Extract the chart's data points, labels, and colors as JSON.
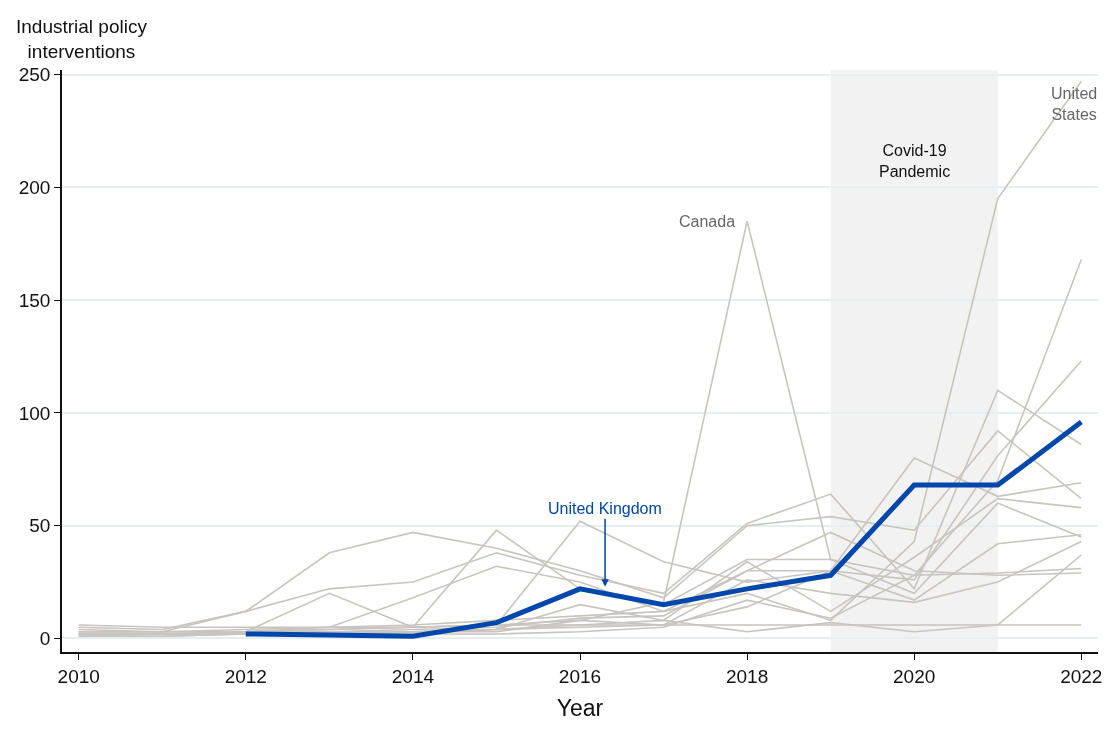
{
  "chart_data": {
    "type": "line",
    "xlabel": "Year",
    "ylabel": "Industrial policy\ninterventions",
    "x": [
      2010,
      2011,
      2012,
      2013,
      2014,
      2015,
      2016,
      2017,
      2018,
      2019,
      2020,
      2021,
      2022
    ],
    "series": [
      {
        "color": "#c8c4bf",
        "values": [
          3,
          3,
          4,
          5,
          6,
          8,
          10,
          12,
          20,
          8,
          43,
          195,
          247
        ]
      },
      {
        "color": "#c8c4bf",
        "values": [
          2,
          2,
          3,
          4,
          5,
          6,
          8,
          16,
          185,
          35,
          20,
          60,
          45
        ]
      },
      {
        "color": "#c8c4bf",
        "values": [
          5,
          4,
          12,
          38,
          47,
          40,
          30,
          18,
          50,
          54,
          48,
          92,
          62
        ]
      },
      {
        "color": "#c8c4bf",
        "values": [
          3,
          3,
          12,
          22,
          25,
          38,
          28,
          20,
          51,
          64,
          22,
          110,
          86
        ]
      },
      {
        "color": "#c8c4bf",
        "values": [
          2,
          2,
          3,
          20,
          5,
          48,
          22,
          15,
          35,
          35,
          28,
          70,
          168
        ]
      },
      {
        "color": "#c8c4bf",
        "values": [
          1,
          2,
          3,
          5,
          18,
          32,
          25,
          12,
          30,
          30,
          26,
          81,
          123
        ]
      },
      {
        "color": "#c8c4bf",
        "values": [
          4,
          3,
          3,
          4,
          5,
          6,
          52,
          34,
          25,
          30,
          80,
          63,
          69
        ]
      },
      {
        "color": "#c8c4bf",
        "values": [
          2,
          2,
          2,
          3,
          3,
          4,
          15,
          8,
          34,
          12,
          36,
          62,
          58
        ]
      },
      {
        "color": "#c8c4bf",
        "values": [
          1,
          1,
          2,
          2,
          3,
          4,
          5,
          6,
          14,
          30,
          17,
          42,
          46
        ]
      },
      {
        "color": "#c8c4bf",
        "values": [
          2,
          2,
          2,
          3,
          3,
          3,
          8,
          6,
          26,
          20,
          16,
          25,
          43
        ]
      },
      {
        "color": "#c8c4bf",
        "values": [
          3,
          3,
          3,
          3,
          3,
          4,
          6,
          8,
          3,
          7,
          3,
          6,
          37
        ]
      },
      {
        "color": "#c8c4bf",
        "values": [
          1,
          1,
          2,
          2,
          2,
          2,
          3,
          5,
          17,
          9,
          28,
          29,
          31
        ]
      },
      {
        "color": "#c8c4bf",
        "values": [
          2,
          2,
          2,
          3,
          4,
          5,
          9,
          10,
          30,
          47,
          30,
          28,
          29
        ]
      },
      {
        "color": "#c8c4bf",
        "values": [
          6,
          5,
          5,
          5,
          5,
          6,
          6,
          6,
          6,
          6,
          6,
          6,
          6
        ]
      },
      {
        "color": "#0047ab",
        "values": [
          null,
          null,
          2,
          1.5,
          1,
          7,
          22,
          15,
          22,
          28,
          68,
          68,
          96
        ]
      }
    ],
    "annotations": [
      {
        "text": "Canada",
        "x": 2018,
        "y": 185
      },
      {
        "text": "United\nStates",
        "x": 2022,
        "y": 247
      },
      {
        "text": "United Kingdom",
        "x": 2016.3,
        "y": 22
      }
    ],
    "bands": [
      {
        "axis": "x",
        "from": 2019,
        "to": 2021,
        "label": "Covid-19\nPandemic",
        "color": "#f2f2f2"
      }
    ],
    "xlim": [
      2009.8,
      2022.2
    ],
    "ylim": [
      -6,
      252
    ],
    "xticks": [
      2010,
      2012,
      2014,
      2016,
      2018,
      2020,
      2022
    ],
    "yticks": [
      0,
      50,
      100,
      150,
      200,
      250
    ],
    "grid": "y",
    "marker": "none",
    "line_style": "solid"
  }
}
